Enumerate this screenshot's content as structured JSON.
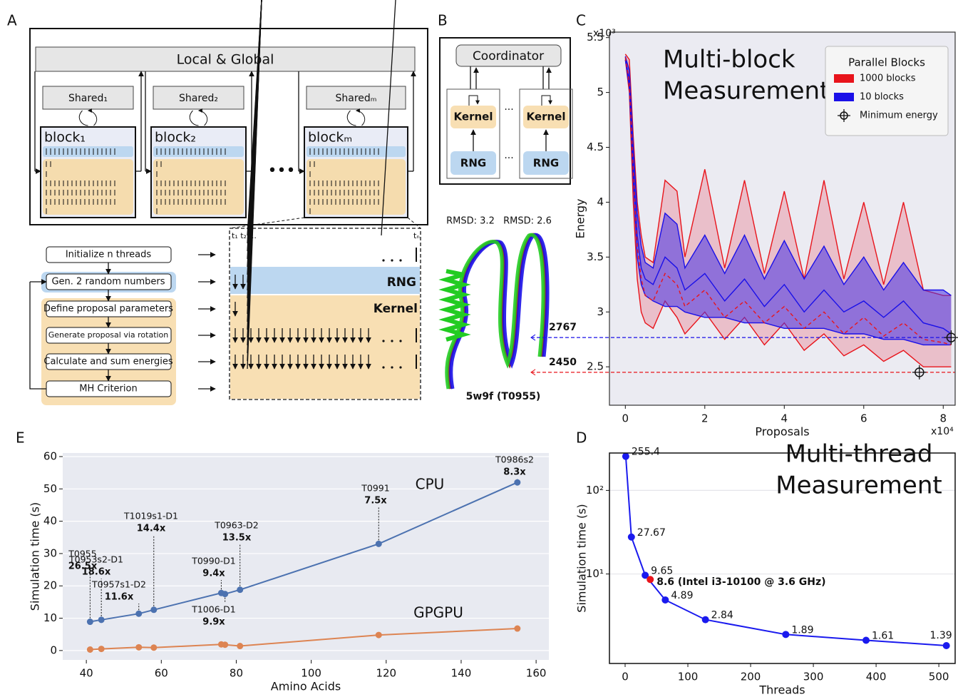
{
  "panel_labels": {
    "a": "A",
    "b": "B",
    "c": "C",
    "d": "D",
    "e": "E"
  },
  "diagram_a": {
    "top": "Local & Global",
    "shared": [
      "Shared₁",
      "Shared₂",
      "Sharedₘ"
    ],
    "blocks": [
      "block₁",
      "block₂",
      "blockₘ"
    ],
    "ellipsis": "•••",
    "steps": [
      "Initialize n threads",
      "Gen. 2 random numbers",
      "Define proposal parameters",
      "Generate proposal via rotation",
      "Calculate and sum energies",
      "MH Criterion"
    ],
    "thread_first": "t₁ t₂ ...",
    "thread_last": "tₙ",
    "rng": "RNG",
    "kernel": "Kernel"
  },
  "diagram_b": {
    "coordinator": "Coordinator",
    "kernel": [
      "Kernel",
      "Kernel"
    ],
    "rng": [
      "RNG",
      "RNG"
    ],
    "dots": [
      "...",
      "..."
    ]
  },
  "structure": {
    "rmsd": [
      "RMSD: 3.2",
      "RMSD: 2.6"
    ],
    "name": "5w9f (T0955)"
  },
  "chart_data": [
    {
      "type": "band",
      "annotation": [
        "Multi-block",
        "Measurement"
      ],
      "x_label": "Proposals",
      "y_label": "Energy",
      "x_multiplier": "x10⁴",
      "y_multiplier": "x10³",
      "xlim": [
        -0.4,
        8.3
      ],
      "ylim": [
        2.15,
        5.55
      ],
      "xticks": [
        0,
        2,
        4,
        6,
        8
      ],
      "yticks": [
        2.5,
        3,
        3.5,
        4,
        4.5,
        5,
        5.5
      ],
      "legend_title": "Parallel Blocks",
      "x": [
        0,
        0.1,
        0.2,
        0.3,
        0.4,
        0.5,
        0.7,
        1.0,
        1.3,
        1.5,
        2.0,
        2.5,
        3.0,
        3.5,
        4.0,
        4.5,
        5.0,
        5.5,
        6.0,
        6.5,
        7.0,
        7.5,
        8.0,
        8.2
      ],
      "series": [
        {
          "name": "1000 blocks",
          "color": "#e8141b",
          "fill": "rgba(232,90,110,0.3)",
          "dashed": true,
          "values": [
            5.32,
            5.1,
            4.3,
            3.6,
            3.3,
            3.15,
            3.1,
            3.35,
            3.25,
            3.05,
            3.2,
            2.95,
            3.1,
            2.9,
            3.05,
            2.85,
            3.0,
            2.8,
            2.95,
            2.78,
            2.9,
            2.75,
            2.72,
            2.7
          ],
          "upper": [
            5.35,
            5.3,
            4.6,
            4.0,
            3.7,
            3.5,
            3.45,
            4.2,
            4.1,
            3.5,
            4.3,
            3.4,
            4.2,
            3.35,
            4.1,
            3.3,
            4.2,
            3.3,
            4.0,
            3.25,
            4.0,
            3.2,
            3.15,
            3.15
          ],
          "lower": [
            5.3,
            5.0,
            4.0,
            3.3,
            3.0,
            2.9,
            2.85,
            3.1,
            2.95,
            2.8,
            3.0,
            2.75,
            2.95,
            2.7,
            2.9,
            2.65,
            2.8,
            2.6,
            2.7,
            2.55,
            2.65,
            2.5,
            2.5,
            2.5
          ]
        },
        {
          "name": "10 blocks",
          "color": "#1a10e8",
          "fill": "rgba(70,50,230,0.55)",
          "dashed": false,
          "values": [
            5.32,
            5.1,
            4.35,
            3.7,
            3.4,
            3.3,
            3.25,
            3.5,
            3.4,
            3.2,
            3.35,
            3.1,
            3.3,
            3.05,
            3.25,
            3.0,
            3.2,
            3.0,
            3.1,
            2.95,
            3.1,
            2.9,
            2.85,
            2.8
          ],
          "upper": [
            5.33,
            5.2,
            4.5,
            3.9,
            3.6,
            3.45,
            3.4,
            3.9,
            3.8,
            3.4,
            3.7,
            3.35,
            3.7,
            3.3,
            3.65,
            3.3,
            3.6,
            3.25,
            3.5,
            3.2,
            3.45,
            3.2,
            3.2,
            3.15
          ],
          "lower": [
            5.3,
            5.05,
            4.2,
            3.5,
            3.25,
            3.15,
            3.1,
            3.05,
            3.05,
            3.0,
            2.95,
            2.95,
            2.9,
            2.9,
            2.85,
            2.85,
            2.85,
            2.8,
            2.8,
            2.75,
            2.75,
            2.7,
            2.7,
            2.7
          ]
        }
      ],
      "markers": {
        "name": "Minimum energy",
        "x": [
          7.4,
          8.2
        ],
        "values": [
          2.45,
          2.767
        ],
        "value_labels": [
          "2450",
          "2767"
        ],
        "label_colors": [
          "#e8141b",
          "#1a10e8"
        ]
      }
    },
    {
      "type": "line",
      "x_label": "Amino Acids",
      "y_label": "Simulation time (s)",
      "xlim": [
        33.7,
        163.4
      ],
      "ylim": [
        -2.9,
        61.1
      ],
      "xticks": [
        40,
        60,
        80,
        100,
        120,
        140,
        160
      ],
      "yticks": [
        0,
        10,
        20,
        30,
        40,
        50,
        60
      ],
      "grid": true,
      "x": [
        41,
        44,
        54,
        58,
        76,
        77,
        81,
        118,
        155
      ],
      "point_names": [
        "T0955",
        "T0953s2-D1",
        "T0957s1-D2",
        "T1019s1-D1",
        "T0990-D1",
        "T1006-D1",
        "T0963-D2",
        "T0991",
        "T0986s2"
      ],
      "speedups": [
        "26.5x",
        "18.6x",
        "11.6x",
        "14.4x",
        "9.4x",
        "9.9x",
        "13.5x",
        "7.5x",
        "8.3x"
      ],
      "series": [
        {
          "name": "CPU",
          "color": "#4c72b0",
          "values": [
            8.9,
            9.5,
            11.4,
            12.6,
            17.8,
            17.5,
            18.8,
            33,
            52
          ]
        },
        {
          "name": "GPGPU",
          "color": "#dd8452",
          "values": [
            0.3,
            0.5,
            1.0,
            0.9,
            1.9,
            1.8,
            1.4,
            4.8,
            6.8
          ]
        }
      ]
    },
    {
      "type": "line",
      "log_y": true,
      "annotation": [
        "Multi-thread",
        "Measurement"
      ],
      "x_label": "Threads",
      "y_label": "Simulation time (s)",
      "xlim": [
        -25,
        526
      ],
      "ylim": [
        0.85,
        280
      ],
      "xticks": [
        0,
        100,
        200,
        300,
        400,
        500
      ],
      "yticks": [
        {
          "value": 10,
          "label": "10¹"
        },
        {
          "value": 100,
          "label": "10²"
        }
      ],
      "grid": true,
      "series": [
        {
          "color": "#1a1aee",
          "x": [
            1,
            10,
            32,
            64,
            128,
            256,
            384,
            512
          ],
          "values": [
            255.4,
            27.67,
            9.65,
            4.89,
            2.84,
            1.89,
            1.61,
            1.39
          ]
        },
        {
          "color": "#e8141b",
          "x": [
            40
          ],
          "values": [
            8.6
          ],
          "value_labels": [
            "8.6 (Intel i3-10100 @ 3.6 GHz)"
          ]
        }
      ]
    }
  ]
}
